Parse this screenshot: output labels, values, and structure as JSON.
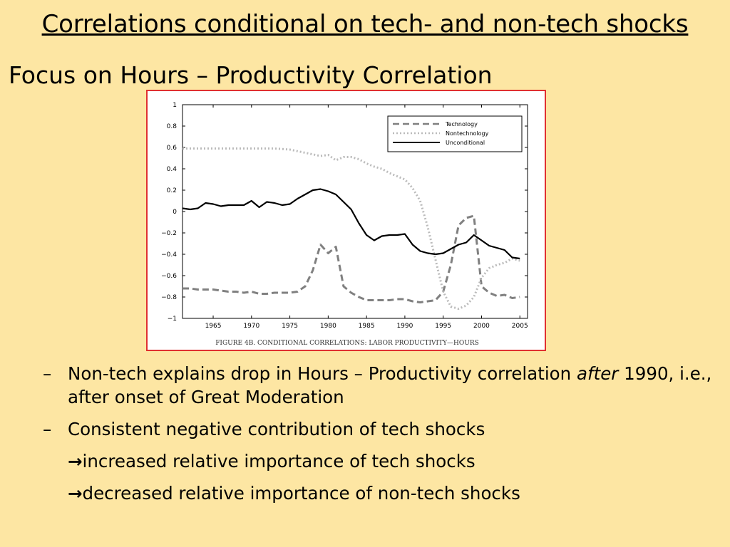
{
  "slide": {
    "title": "Correlations conditional on tech- and non-tech shocks",
    "subtitle": "Focus on Hours – Productivity Correlation"
  },
  "chart_data": {
    "type": "line",
    "caption": "FIGURE 4B. CONDITIONAL CORRELATIONS: LABOR PRODUCTIVITY—HOURS",
    "xlim": [
      1961,
      2006
    ],
    "ylim": [
      -1,
      1
    ],
    "xticks": [
      1965,
      1970,
      1975,
      1980,
      1985,
      1990,
      1995,
      2000,
      2005
    ],
    "yticks": [
      1,
      0.8,
      0.6,
      0.4,
      0.2,
      0,
      -0.2,
      -0.4,
      -0.6,
      -0.8,
      -1
    ],
    "ytick_labels": [
      "1",
      "0.8",
      "0.6",
      "0.4",
      "0.2",
      "0",
      "−0.2",
      "−0.4",
      "−0.6",
      "−0.8",
      "−1"
    ],
    "legend_position": "top-right",
    "grid": false,
    "series": [
      {
        "name": "Technology",
        "style": "dashed",
        "color": "#808080",
        "x": [
          1961,
          1962,
          1963,
          1964,
          1965,
          1966,
          1967,
          1968,
          1969,
          1970,
          1971,
          1972,
          1973,
          1974,
          1975,
          1976,
          1977,
          1978,
          1979,
          1980,
          1981,
          1982,
          1983,
          1984,
          1985,
          1986,
          1987,
          1988,
          1989,
          1990,
          1991,
          1992,
          1993,
          1994,
          1995,
          1996,
          1997,
          1998,
          1999,
          2000,
          2001,
          2002,
          2003,
          2004,
          2005
        ],
        "y": [
          -0.72,
          -0.72,
          -0.73,
          -0.73,
          -0.73,
          -0.74,
          -0.75,
          -0.75,
          -0.76,
          -0.75,
          -0.77,
          -0.77,
          -0.76,
          -0.76,
          -0.76,
          -0.75,
          -0.7,
          -0.55,
          -0.31,
          -0.39,
          -0.33,
          -0.7,
          -0.76,
          -0.8,
          -0.83,
          -0.83,
          -0.83,
          -0.83,
          -0.82,
          -0.82,
          -0.84,
          -0.85,
          -0.84,
          -0.83,
          -0.75,
          -0.5,
          -0.13,
          -0.06,
          -0.04,
          -0.7,
          -0.76,
          -0.79,
          -0.78,
          -0.81,
          -0.8
        ]
      },
      {
        "name": "Nontechnology",
        "style": "dotted",
        "color": "#bbbbbb",
        "x": [
          1961,
          1963,
          1965,
          1967,
          1969,
          1971,
          1973,
          1975,
          1977,
          1979,
          1980,
          1981,
          1982,
          1983,
          1984,
          1985,
          1986,
          1987,
          1988,
          1989,
          1990,
          1991,
          1992,
          1993,
          1994,
          1995,
          1996,
          1997,
          1998,
          1999,
          2000,
          2001,
          2002,
          2003,
          2004,
          2005
        ],
        "y": [
          0.59,
          0.59,
          0.59,
          0.59,
          0.59,
          0.59,
          0.59,
          0.58,
          0.55,
          0.52,
          0.53,
          0.48,
          0.51,
          0.51,
          0.49,
          0.45,
          0.42,
          0.4,
          0.36,
          0.33,
          0.3,
          0.22,
          0.1,
          -0.15,
          -0.45,
          -0.75,
          -0.89,
          -0.91,
          -0.88,
          -0.8,
          -0.62,
          -0.53,
          -0.5,
          -0.48,
          -0.44,
          -0.46
        ]
      },
      {
        "name": "Unconditional",
        "style": "solid",
        "color": "#000000",
        "x": [
          1961,
          1962,
          1963,
          1964,
          1965,
          1966,
          1967,
          1968,
          1969,
          1970,
          1971,
          1972,
          1973,
          1974,
          1975,
          1976,
          1977,
          1978,
          1979,
          1980,
          1981,
          1982,
          1983,
          1984,
          1985,
          1986,
          1987,
          1988,
          1989,
          1990,
          1991,
          1992,
          1993,
          1994,
          1995,
          1996,
          1997,
          1998,
          1999,
          2000,
          2001,
          2002,
          2003,
          2004,
          2005
        ],
        "y": [
          0.03,
          0.02,
          0.03,
          0.08,
          0.07,
          0.05,
          0.06,
          0.06,
          0.06,
          0.1,
          0.04,
          0.09,
          0.08,
          0.06,
          0.07,
          0.12,
          0.16,
          0.2,
          0.21,
          0.19,
          0.16,
          0.09,
          0.02,
          -0.11,
          -0.22,
          -0.27,
          -0.23,
          -0.22,
          -0.22,
          -0.21,
          -0.31,
          -0.37,
          -0.39,
          -0.4,
          -0.39,
          -0.35,
          -0.31,
          -0.29,
          -0.22,
          -0.27,
          -0.32,
          -0.34,
          -0.36,
          -0.43,
          -0.44
        ]
      }
    ]
  },
  "bullets": [
    {
      "dash": "–",
      "text": "Non-tech explains drop in Hours – Productivity correlation ",
      "emph": "after",
      "text2": " 1990, i.e., after onset of Great Moderation"
    },
    {
      "dash": "–",
      "text": "Consistent negative contribution of tech shocks"
    }
  ],
  "arrow_lines": [
    {
      "arrow": "→",
      "text": "increased relative importance of tech shocks"
    },
    {
      "arrow": "→",
      "text": "decreased relative importance of non-tech shocks"
    }
  ]
}
